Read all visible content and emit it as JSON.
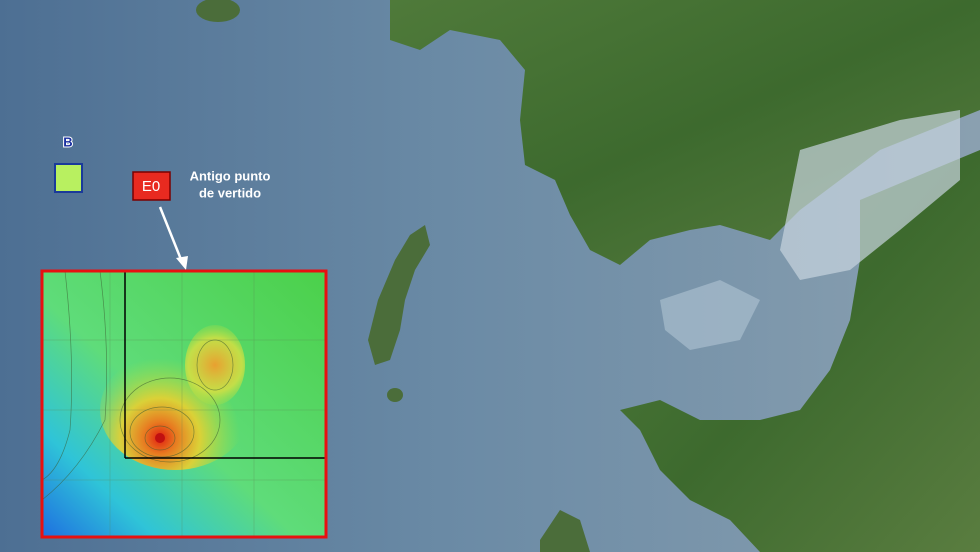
{
  "markers": [
    {
      "label": "B"
    },
    {
      "label": "E0"
    }
  ],
  "annotation": {
    "lines": [
      "Antigo punto",
      "de vertido"
    ]
  }
}
